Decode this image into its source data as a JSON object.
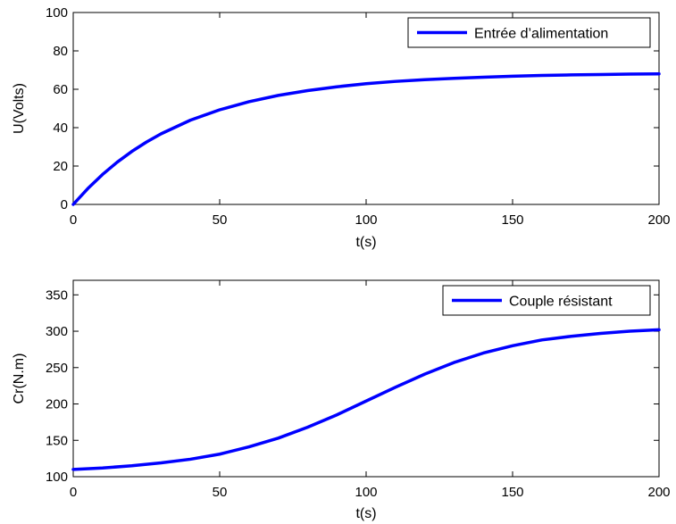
{
  "chart_data": [
    {
      "type": "line",
      "xlabel": "t(s)",
      "ylabel": "U(Volts)",
      "xlim": [
        0,
        200
      ],
      "ylim": [
        0,
        100
      ],
      "xticks": [
        0,
        50,
        100,
        150,
        200
      ],
      "yticks": [
        0,
        20,
        40,
        60,
        80,
        100
      ],
      "legend_position": "top-right",
      "grid": false,
      "series": [
        {
          "name": "Entrée d’alimentation",
          "color": "#0000ff",
          "x": [
            0,
            5,
            10,
            15,
            20,
            25,
            30,
            40,
            50,
            60,
            70,
            80,
            90,
            100,
            110,
            120,
            130,
            140,
            150,
            160,
            170,
            180,
            190,
            200
          ],
          "y": [
            0,
            8.3,
            15.6,
            22.0,
            27.6,
            32.5,
            36.8,
            43.9,
            49.3,
            53.5,
            56.8,
            59.3,
            61.3,
            62.9,
            64.1,
            65.0,
            65.7,
            66.3,
            66.8,
            67.2,
            67.5,
            67.7,
            67.9,
            68.0
          ]
        }
      ]
    },
    {
      "type": "line",
      "xlabel": "t(s)",
      "ylabel": "Cr(N.m)",
      "xlim": [
        0,
        200
      ],
      "ylim": [
        100,
        370
      ],
      "xticks": [
        0,
        50,
        100,
        150,
        200
      ],
      "yticks": [
        100,
        150,
        200,
        250,
        300,
        350
      ],
      "legend_position": "top-right",
      "grid": false,
      "series": [
        {
          "name": "Couple résistant",
          "color": "#0000ff",
          "x": [
            0,
            10,
            20,
            30,
            40,
            50,
            60,
            70,
            80,
            90,
            100,
            110,
            120,
            130,
            140,
            150,
            160,
            170,
            180,
            190,
            200
          ],
          "y": [
            110,
            112,
            115,
            119,
            124,
            131,
            141,
            153,
            168,
            185,
            204,
            223,
            241,
            257,
            270,
            280,
            288,
            293,
            297,
            300,
            302
          ]
        }
      ]
    }
  ]
}
